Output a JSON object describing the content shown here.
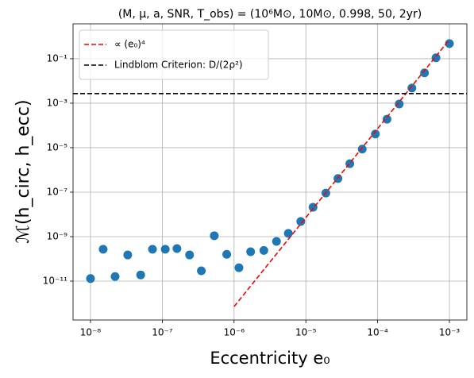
{
  "chart_data": {
    "type": "scatter",
    "title": "(M, μ, a, SNR, T_obs) = (10⁶M⊙, 10M⊙, 0.998, 50, 2yr)",
    "xlabel": "Eccentricity e₀",
    "ylabel": "ℳ(h_circ, h_ecc)",
    "xscale": "log",
    "yscale": "log",
    "xlim": [
      5.71e-09,
      0.00175
    ],
    "ylim": [
      1.78e-13,
      3.7
    ],
    "xticks": [
      {
        "value": 1e-08,
        "label": "10⁻⁸"
      },
      {
        "value": 1e-07,
        "label": "10⁻⁷"
      },
      {
        "value": 1e-06,
        "label": "10⁻⁶"
      },
      {
        "value": 1e-05,
        "label": "10⁻⁵"
      },
      {
        "value": 0.0001,
        "label": "10⁻⁴"
      },
      {
        "value": 0.001,
        "label": "10⁻³"
      }
    ],
    "yticks": [
      {
        "value": 1e-11,
        "label": "10⁻¹¹"
      },
      {
        "value": 1e-09,
        "label": "10⁻⁹"
      },
      {
        "value": 1e-07,
        "label": "10⁻⁷"
      },
      {
        "value": 1e-05,
        "label": "10⁻⁵"
      },
      {
        "value": 0.001,
        "label": "10⁻³"
      },
      {
        "value": 0.1,
        "label": "10⁻¹"
      }
    ],
    "grid": true,
    "legend": "upper left",
    "series": [
      {
        "color": "#1f77b4",
        "marker": "circle",
        "x": [
          1e-08,
          1.5e-08,
          2.2e-08,
          3.3e-08,
          5e-08,
          7.3e-08,
          1.1e-07,
          1.6e-07,
          2.4e-07,
          3.5e-07,
          5.3e-07,
          7.9e-07,
          1.17e-06,
          1.7e-06,
          2.6e-06,
          3.9e-06,
          5.7e-06,
          8.5e-06,
          1.26e-05,
          1.9e-05,
          2.8e-05,
          4.1e-05,
          6.1e-05,
          9.3e-05,
          0.000135,
          0.0002,
          0.0003,
          0.00045,
          0.00065,
          0.001
        ],
        "values": [
          1.3e-11,
          2.7e-10,
          1.6e-11,
          1.5e-10,
          1.9e-11,
          2.7e-10,
          2.7e-10,
          2.9e-10,
          1.5e-10,
          2.9e-11,
          1.1e-09,
          1.6e-10,
          4e-11,
          2.1e-10,
          2.4e-10,
          6.1e-10,
          1.4e-09,
          4.8e-09,
          2.1e-08,
          9.1e-08,
          4.1e-07,
          1.9e-06,
          8.6e-06,
          4.1e-05,
          0.00019,
          0.00092,
          0.0048,
          0.023,
          0.11,
          0.48
        ]
      },
      {
        "name": "∝ (e₀)⁴",
        "color": "#ff0000",
        "line": "dashed",
        "x": [
          1e-06,
          0.001
        ],
        "values": [
          7.2e-13,
          0.72
        ]
      },
      {
        "name": "Lindblom Criterion: D/(2ρ²)",
        "color": "#000000",
        "line": "dashed",
        "horizontal": true,
        "values": [
          0.0027
        ]
      }
    ]
  }
}
